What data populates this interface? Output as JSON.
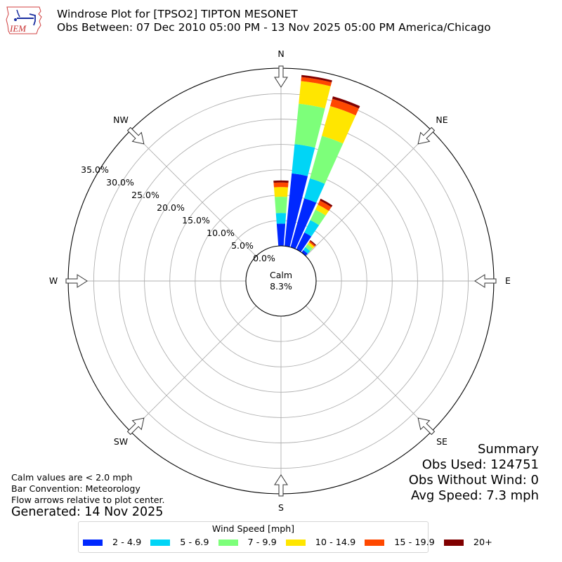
{
  "header": {
    "logo_text": "IEM",
    "title": "Windrose Plot for [TPSO2] TIPTON MESONET",
    "subtitle": "Obs Between: 07 Dec 2010 05:00 PM - 13 Nov 2025 05:00 PM America/Chicago"
  },
  "notes": {
    "calm": "Calm values are < 2.0 mph",
    "convention": "Bar Convention: Meteorology",
    "flow": "Flow arrows relative to plot center.",
    "generated": "Generated: 14 Nov 2025"
  },
  "summary": {
    "title": "Summary",
    "obs_used": "Obs Used: 124751",
    "obs_without_wind": "Obs Without Wind: 0",
    "avg_speed": "Avg Speed: 7.3 mph"
  },
  "legend": {
    "title": "Wind Speed [mph]",
    "items": [
      {
        "label": "2 - 4.9",
        "color": "#0028ff"
      },
      {
        "label": "5 - 6.9",
        "color": "#00d5f6"
      },
      {
        "label": "7 - 9.9",
        "color": "#7dff7a"
      },
      {
        "label": "10 - 14.9",
        "color": "#ffe600"
      },
      {
        "label": "15 - 19.9",
        "color": "#ff4800"
      },
      {
        "label": "20+",
        "color": "#800000"
      }
    ]
  },
  "chart_data": {
    "type": "windrose",
    "title": "Windrose Plot for [TPSO2] TIPTON MESONET",
    "subtitle": "Obs Between: 07 Dec 2010 05:00 PM - 13 Nov 2025 05:00 PM America/Chicago",
    "calm_label": "Calm",
    "calm_value": "8.3%",
    "radial_unit": "%",
    "radial_ticks": [
      "0.0%",
      "5.0%",
      "10.0%",
      "15.0%",
      "20.0%",
      "25.0%",
      "30.0%",
      "35.0%"
    ],
    "rlim": [
      0,
      35.3
    ],
    "direction_labels": [
      "N",
      "NE",
      "E",
      "SE",
      "S",
      "SW",
      "W",
      "NW"
    ],
    "speed_bins": [
      "2 - 4.9",
      "5 - 6.9",
      "7 - 9.9",
      "10 - 14.9",
      "15 - 19.9",
      "20+"
    ],
    "bin_colors": [
      "#0028ff",
      "#00d5f6",
      "#7dff7a",
      "#ffe600",
      "#ff4800",
      "#800000"
    ],
    "bar_width_deg": 8.6,
    "bars": [
      {
        "direction_deg": 0,
        "cumulative": [
          4.4,
          6.5,
          9.7,
          11.6,
          12.5,
          12.9
        ]
      },
      {
        "direction_deg": 10,
        "cumulative": [
          14.4,
          20.2,
          28.2,
          32.7,
          33.5,
          33.9
        ]
      },
      {
        "direction_deg": 20,
        "cumulative": [
          10.0,
          14.1,
          22.8,
          28.9,
          30.4,
          30.9
        ]
      },
      {
        "direction_deg": 30,
        "cumulative": [
          3.7,
          6.4,
          8.7,
          9.8,
          10.7,
          11.1
        ]
      },
      {
        "direction_deg": 40,
        "cumulative": [
          0.6,
          1.3,
          2.0,
          2.5,
          2.8,
          3.0
        ]
      }
    ],
    "series": [
      {
        "name": "2 - 4.9",
        "values": [
          4.4,
          14.4,
          10.0,
          3.7,
          0.6
        ]
      },
      {
        "name": "5 - 6.9",
        "values": [
          2.1,
          5.8,
          4.1,
          2.7,
          0.7
        ]
      },
      {
        "name": "7 - 9.9",
        "values": [
          3.2,
          8.0,
          8.7,
          2.3,
          0.7
        ]
      },
      {
        "name": "10 - 14.9",
        "values": [
          1.9,
          4.5,
          6.1,
          1.1,
          0.5
        ]
      },
      {
        "name": "15 - 19.9",
        "values": [
          0.9,
          0.8,
          1.5,
          0.9,
          0.3
        ]
      },
      {
        "name": "20+",
        "values": [
          0.4,
          0.4,
          0.5,
          0.4,
          0.2
        ]
      }
    ],
    "categories": [
      "0°",
      "10°",
      "20°",
      "30°",
      "40°"
    ],
    "legend_position": "bottom",
    "grid": true
  }
}
